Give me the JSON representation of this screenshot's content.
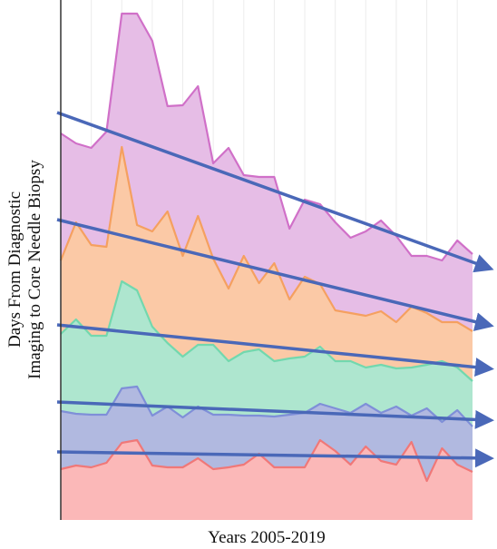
{
  "chart_data": {
    "type": "area",
    "xlabel": "Years 2005-2019",
    "ylabel": [
      "Days From Diagnostic",
      "Imaging to Core Needle Biopsy"
    ],
    "categories": [
      null,
      null,
      null,
      null,
      null,
      null,
      null,
      null,
      null,
      null,
      null,
      null,
      null,
      null,
      null,
      null,
      null,
      null,
      null,
      null,
      null,
      null,
      null,
      null,
      null,
      null,
      null,
      null
    ],
    "ylim": [
      0,
      570
    ],
    "grid": true,
    "series": [
      {
        "color": "#d070c8",
        "fill": "#e6bde6",
        "values": [
          426,
          415,
          410,
          428,
          558,
          558,
          528,
          456,
          457,
          478,
          393,
          410,
          380,
          378,
          378,
          321,
          353,
          348,
          328,
          311,
          318,
          330,
          313,
          291,
          291,
          286,
          308,
          293
        ]
      },
      {
        "color": "#f5a060",
        "fill": "#fbc9a6",
        "values": [
          286,
          328,
          303,
          301,
          411,
          325,
          318,
          340,
          291,
          335,
          288,
          255,
          291,
          261,
          283,
          243,
          268,
          260,
          231,
          228,
          225,
          230,
          218,
          235,
          228,
          218,
          218,
          208
        ]
      },
      {
        "color": "#72d8ae",
        "fill": "#aee6cf",
        "values": [
          205,
          221,
          203,
          203,
          263,
          253,
          213,
          195,
          180,
          193,
          193,
          175,
          185,
          188,
          175,
          178,
          180,
          191,
          175,
          175,
          168,
          171,
          167,
          168,
          171,
          175,
          168,
          153
        ]
      },
      {
        "color": "#7f8fd8",
        "fill": "#b1b9e0",
        "values": [
          120,
          117,
          116,
          116,
          145,
          147,
          115,
          125,
          113,
          125,
          116,
          116,
          115,
          115,
          114,
          116,
          118,
          128,
          123,
          118,
          128,
          118,
          125,
          115,
          123,
          108,
          121,
          103
        ]
      },
      {
        "color": "#f07878",
        "fill": "#fbb8b8",
        "values": [
          56,
          60,
          58,
          63,
          85,
          88,
          60,
          58,
          58,
          68,
          56,
          58,
          61,
          73,
          58,
          58,
          58,
          88,
          76,
          61,
          81,
          65,
          61,
          86,
          43,
          79,
          61,
          53
        ]
      }
    ],
    "trend_color": "#4a68b8",
    "trend_lines": [
      {
        "start": 449,
        "end": 278
      },
      {
        "start": 331,
        "end": 215
      },
      {
        "start": 215,
        "end": 167
      },
      {
        "start": 130,
        "end": 110
      },
      {
        "start": 75,
        "end": 68
      }
    ]
  }
}
